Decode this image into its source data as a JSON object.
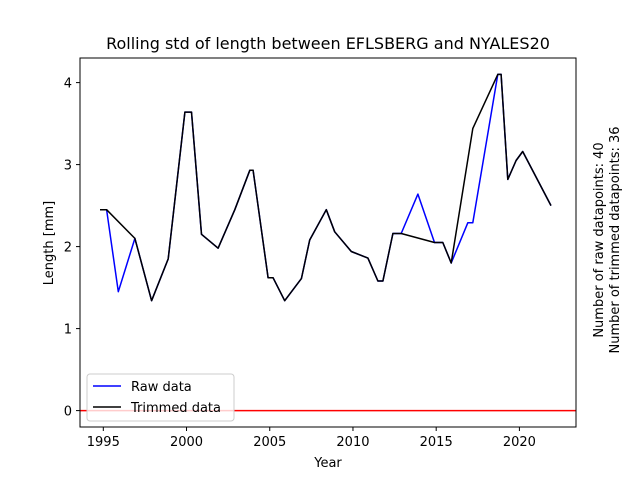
{
  "chart_data": {
    "type": "line",
    "title": "Rolling std of length between EFLSBERG and NYALES20",
    "xlabel": "Year",
    "ylabel": "Length [mm]",
    "xlim": [
      1993.6,
      2023.4
    ],
    "ylim": [
      -0.2,
      4.3
    ],
    "x_ticks": [
      1995,
      2000,
      2005,
      2010,
      2015,
      2020
    ],
    "y_ticks": [
      0,
      1,
      2,
      3,
      4
    ],
    "x_tick_labels": [
      "1995",
      "2000",
      "2005",
      "2010",
      "2015",
      "2020"
    ],
    "y_tick_labels": [
      "0",
      "1",
      "2",
      "3",
      "4"
    ],
    "grid": false,
    "legend": {
      "placement": "lower-left",
      "entries": [
        "Raw data",
        "Trimmed data"
      ]
    },
    "reference_line": {
      "y": 0,
      "color": "#ff0000"
    },
    "side_labels": [
      "Number of raw datapoints: 40",
      "Number of trimmed datapoints: 36"
    ],
    "series": [
      {
        "name": "Raw data",
        "color": "#0000ff",
        "x": [
          1994.8,
          1995.2,
          1995.9,
          1996.9,
          1997.9,
          1998.9,
          1999.9,
          2000.3,
          2000.9,
          2001.9,
          2002.9,
          2003.8,
          2004.0,
          2004.9,
          2005.2,
          2005.9,
          2006.9,
          2007.4,
          2008.4,
          2008.9,
          2009.9,
          2010.9,
          2011.5,
          2011.8,
          2012.4,
          2012.9,
          2013.9,
          2014.9,
          2015.4,
          2015.9,
          2016.9,
          2017.2,
          2018.7,
          2018.9,
          2019.3,
          2019.8,
          2020.2,
          2021.9
        ],
        "y": [
          2.45,
          2.45,
          1.45,
          2.1,
          1.34,
          1.85,
          3.64,
          3.64,
          2.15,
          1.98,
          2.45,
          2.93,
          2.93,
          1.62,
          1.62,
          1.34,
          1.61,
          2.08,
          2.45,
          2.18,
          1.94,
          1.86,
          1.58,
          1.58,
          2.16,
          2.16,
          2.64,
          2.05,
          2.05,
          1.8,
          2.29,
          2.29,
          4.1,
          4.1,
          2.82,
          3.05,
          3.16,
          2.5
        ]
      },
      {
        "name": "Trimmed data",
        "color": "#000000",
        "x": [
          1994.8,
          1995.2,
          1996.9,
          1997.9,
          1998.9,
          1999.9,
          2000.3,
          2000.9,
          2001.9,
          2002.9,
          2003.8,
          2004.0,
          2004.9,
          2005.2,
          2005.9,
          2006.9,
          2007.4,
          2008.4,
          2008.9,
          2009.9,
          2010.9,
          2011.5,
          2011.8,
          2012.4,
          2012.9,
          2014.9,
          2015.4,
          2015.9,
          2017.2,
          2018.7,
          2018.9,
          2019.3,
          2019.8,
          2020.2,
          2021.9
        ],
        "y": [
          2.45,
          2.45,
          2.1,
          1.34,
          1.85,
          3.64,
          3.64,
          2.15,
          1.98,
          2.45,
          2.93,
          2.93,
          1.62,
          1.62,
          1.34,
          1.61,
          2.08,
          2.45,
          2.18,
          1.94,
          1.86,
          1.58,
          1.58,
          2.16,
          2.16,
          2.05,
          2.05,
          1.8,
          3.44,
          4.1,
          4.1,
          2.82,
          3.05,
          3.16,
          2.5
        ]
      }
    ]
  }
}
